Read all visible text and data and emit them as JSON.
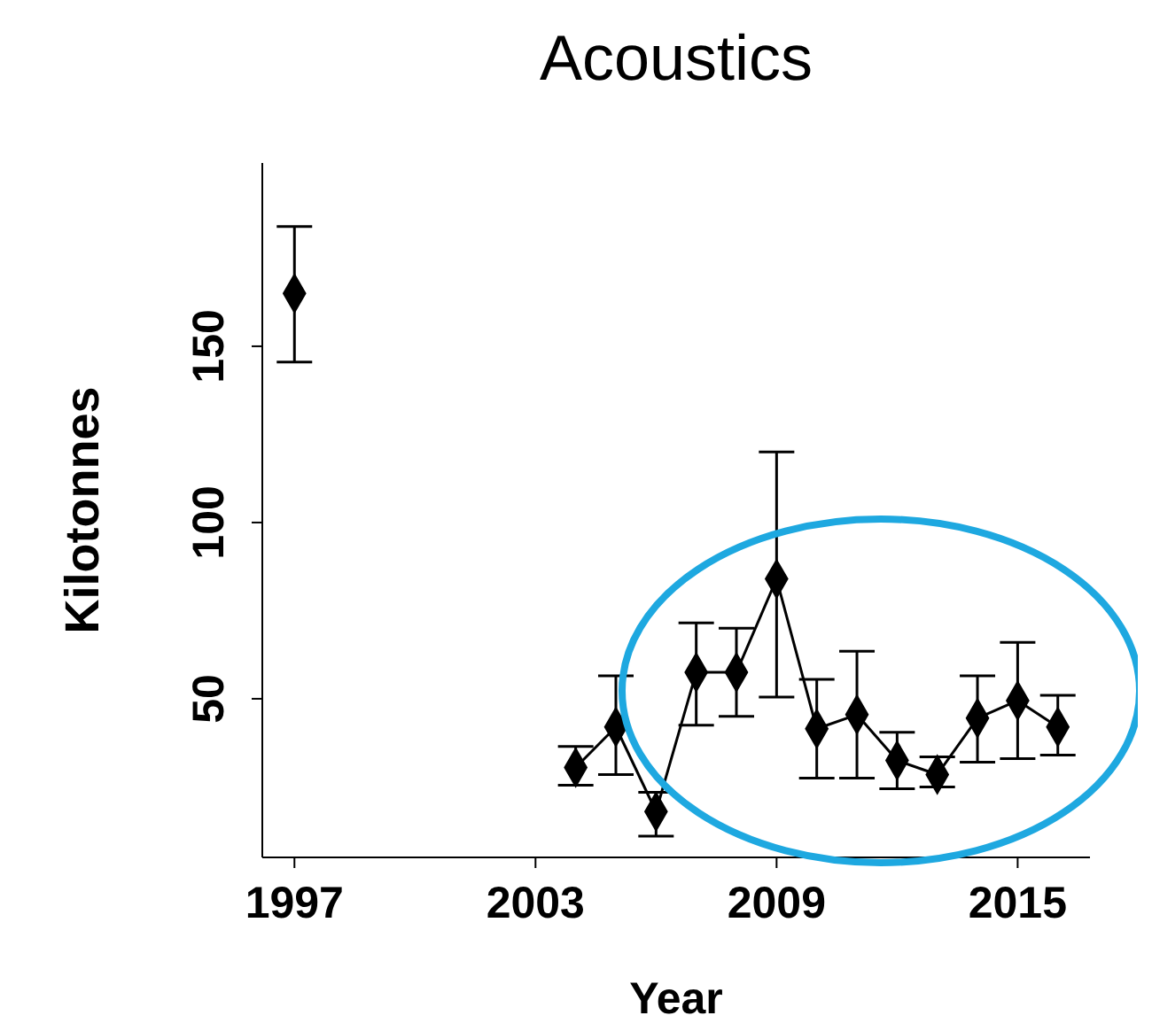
{
  "chart_data": {
    "type": "line",
    "title": "Acoustics",
    "xlabel": "Year",
    "ylabel": "Kilotonnes",
    "xlim": [
      1996.2,
      2016.8
    ],
    "xticks": [
      1997,
      2003,
      2009,
      2015
    ],
    "ylim": [
      5,
      202
    ],
    "yticks": [
      50,
      100,
      150
    ],
    "marker": "diamond",
    "series": [
      {
        "color": "#000000",
        "x": [
          1997
        ],
        "values": [
          165
        ],
        "errors": [
          [
            145.5,
            184
          ]
        ]
      },
      {
        "color": "#000000",
        "x": [
          2004,
          2005,
          2006,
          2007,
          2008,
          2009,
          2010,
          2011,
          2012,
          2013,
          2014,
          2015,
          2016
        ],
        "values": [
          30.5,
          42,
          18,
          57.5,
          57.5,
          84,
          41.5,
          45.5,
          32.5,
          28.5,
          44.5,
          49.5,
          42
        ],
        "errors": [
          [
            25.5,
            36.5
          ],
          [
            28.5,
            56.5
          ],
          [
            11,
            23.5
          ],
          [
            42.5,
            71.5
          ],
          [
            45,
            70
          ],
          [
            50.5,
            120
          ],
          [
            27.5,
            55.5
          ],
          [
            27.5,
            63.5
          ],
          [
            24.5,
            40.5
          ],
          [
            25,
            33.5
          ],
          [
            32,
            56.5
          ],
          [
            33,
            66
          ],
          [
            34,
            51
          ]
        ]
      }
    ]
  }
}
